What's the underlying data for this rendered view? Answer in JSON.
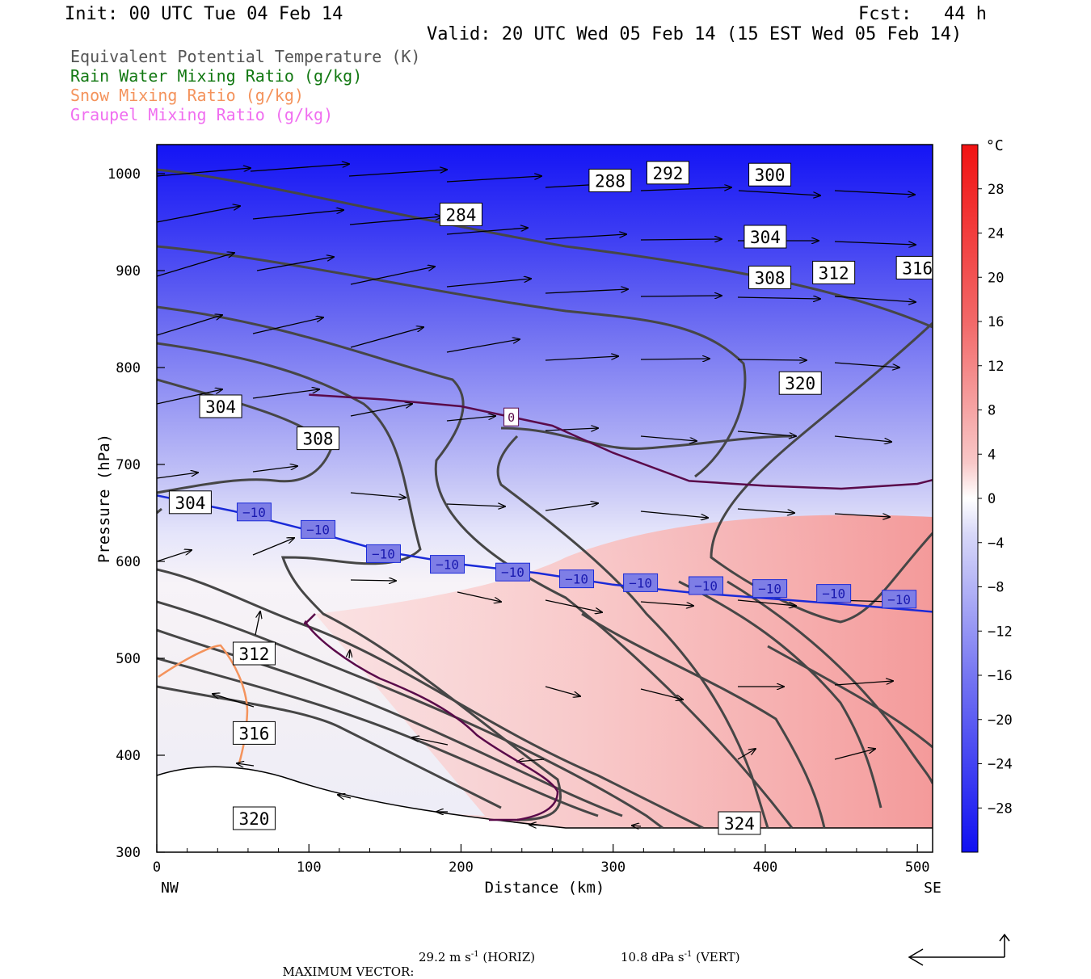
{
  "header": {
    "init": "Init: 00 UTC Tue 04 Feb 14",
    "fcst": "Fcst:   44 h",
    "valid": "Valid: 20 UTC Wed 05 Feb 14 (15 EST Wed 05 Feb 14)"
  },
  "legend": [
    {
      "label": "Equivalent Potential Temperature (K)",
      "color": "#555555"
    },
    {
      "label": "Rain Water Mixing Ratio (g/kg)",
      "color": "#127812"
    },
    {
      "label": "Snow Mixing Ratio (g/kg)",
      "color": "#f4935c"
    },
    {
      "label": "Graupel Mixing Ratio (g/kg)",
      "color": "#f06ef0"
    }
  ],
  "footer": {
    "max_vector_label": "MAXIMUM VECTOR:",
    "horiz_value": "29.2 m s",
    "horiz_suffix": " (HORIZ)",
    "vert_value": "10.8 dPa s",
    "vert_suffix": " (VERT)",
    "exponent": "-1"
  },
  "chart_data": {
    "type": "contour-cross-section",
    "xlabel": "Distance (km)",
    "ylabel": "Pressure (hPa)",
    "xlim": [
      0,
      510
    ],
    "ylim": [
      1030,
      300
    ],
    "x_ticks": [
      0,
      100,
      200,
      300,
      400,
      500
    ],
    "y_ticks": [
      300,
      400,
      500,
      600,
      700,
      800,
      900,
      1000
    ],
    "x_end_labels": {
      "left": "NW",
      "right": "SE"
    },
    "colorbar": {
      "unit": "°C",
      "tick_labels": [
        "28",
        "24",
        "20",
        "16",
        "12",
        "8",
        "4",
        "0",
        "−4",
        "−8",
        "−12",
        "−16",
        "−20",
        "−24",
        "−28"
      ],
      "range": [
        -32,
        32
      ]
    },
    "temperature_contours": [
      {
        "label": "−10",
        "x": [
          0,
          50,
          100,
          150,
          200,
          250,
          300,
          350,
          400,
          450,
          510
        ],
        "p": [
          668,
          652,
          632,
          610,
          597,
          588,
          576,
          568,
          562,
          556,
          548
        ]
      },
      {
        "label": "0",
        "x": [
          100,
          150,
          200,
          230,
          260,
          300,
          350,
          400,
          450,
          500,
          510
        ],
        "p": [
          772,
          767,
          760,
          750,
          740,
          712,
          683,
          678,
          675,
          680,
          684
        ]
      }
    ],
    "theta_e_labels": [
      {
        "label": "320",
        "x": 64,
        "p": 335
      },
      {
        "label": "324",
        "x": 383,
        "p": 330
      },
      {
        "label": "316",
        "x": 64,
        "p": 423
      },
      {
        "label": "312",
        "x": 64,
        "p": 505
      },
      {
        "label": "304",
        "x": 22,
        "p": 661
      },
      {
        "label": "308",
        "x": 106,
        "p": 727
      },
      {
        "label": "304",
        "x": 42,
        "p": 760
      },
      {
        "label": "320",
        "x": 423,
        "p": 784
      },
      {
        "label": "308",
        "x": 403,
        "p": 893
      },
      {
        "label": "312",
        "x": 445,
        "p": 898
      },
      {
        "label": "316",
        "x": 500,
        "p": 903
      },
      {
        "label": "304",
        "x": 400,
        "p": 935
      },
      {
        "label": "284",
        "x": 200,
        "p": 958
      },
      {
        "label": "288",
        "x": 298,
        "p": 993
      },
      {
        "label": "292",
        "x": 336,
        "p": 1001
      },
      {
        "label": "300",
        "x": 403,
        "p": 999
      }
    ],
    "minus10_labels": [
      {
        "label": "−10",
        "x": 64,
        "p": 651
      },
      {
        "label": "−10",
        "x": 106,
        "p": 633
      },
      {
        "label": "−10",
        "x": 149,
        "p": 608
      },
      {
        "label": "−10",
        "x": 191,
        "p": 597
      },
      {
        "label": "−10",
        "x": 234,
        "p": 589
      },
      {
        "label": "−10",
        "x": 276,
        "p": 582
      },
      {
        "label": "−10",
        "x": 318,
        "p": 578
      },
      {
        "label": "−10",
        "x": 361,
        "p": 575
      },
      {
        "label": "−10",
        "x": 403,
        "p": 572
      },
      {
        "label": "−10",
        "x": 445,
        "p": 567
      },
      {
        "label": "−10",
        "x": 488,
        "p": 561
      }
    ],
    "zero_label": {
      "label": "0",
      "x": 233,
      "p": 749
    }
  }
}
